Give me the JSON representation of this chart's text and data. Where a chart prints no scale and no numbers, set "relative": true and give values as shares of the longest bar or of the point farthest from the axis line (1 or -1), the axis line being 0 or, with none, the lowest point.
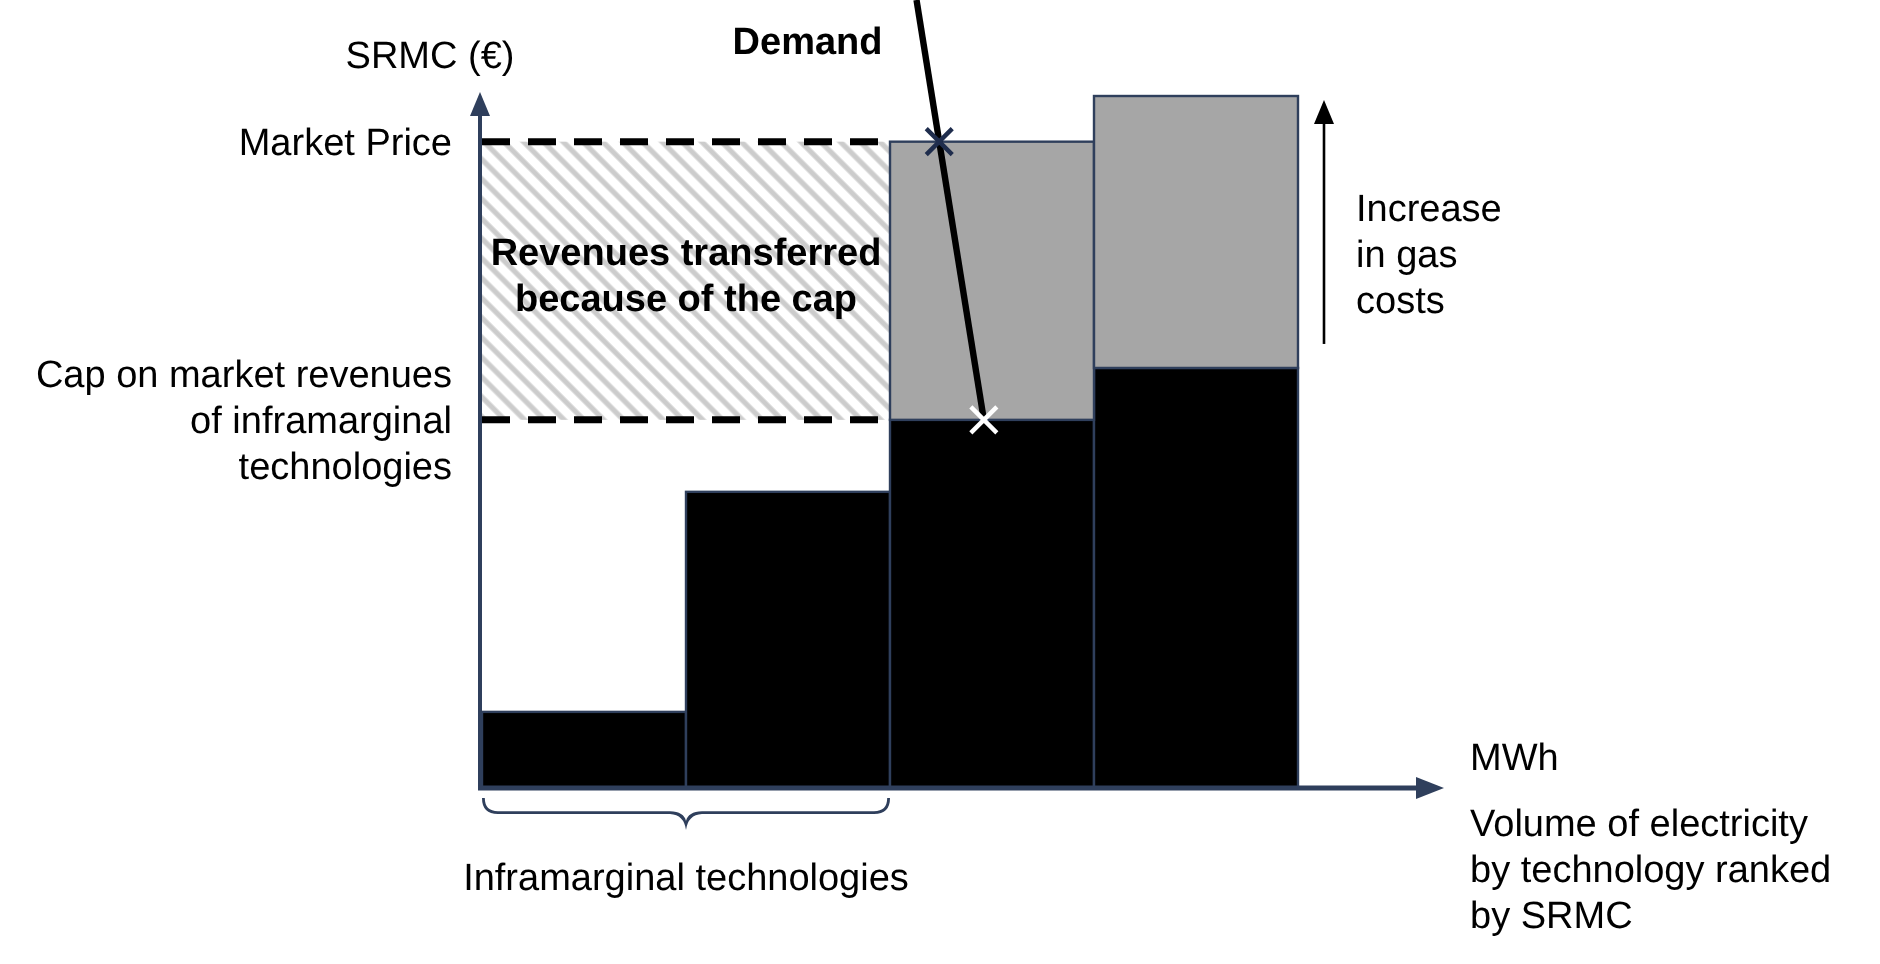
{
  "chart_data": {
    "type": "bar",
    "relative": true,
    "stacked": true,
    "ylabel": "SRMC (€)",
    "xlabel": "MWh",
    "categories": [
      null,
      null,
      null,
      null
    ],
    "series": [
      {
        "color": "#000000",
        "values": [
          0.11,
          0.428,
          0.532,
          0.607
        ]
      },
      {
        "color": "#a6a6a6",
        "values": [
          null,
          null,
          0.402,
          0.393
        ]
      }
    ],
    "ref_lines": [
      {
        "axis": "y",
        "value": 0.934,
        "label": "Market Price",
        "line_style": "dashed",
        "color": "#000000"
      },
      {
        "axis": "y",
        "value": 0.532,
        "label": "Cap on market revenues of inframarginal technologies",
        "line_style": "dashed",
        "color": "#000000"
      }
    ],
    "bands": [
      {
        "axis": "y",
        "from": 0.532,
        "to": 0.934,
        "label": "Revenues transferred because of the cap",
        "color": "#cccccc"
      }
    ],
    "annotations": [
      "Demand",
      "Increase in gas costs",
      "Inframarginal technologies",
      "Volume of electricity by technology ranked by SRMC"
    ]
  }
}
